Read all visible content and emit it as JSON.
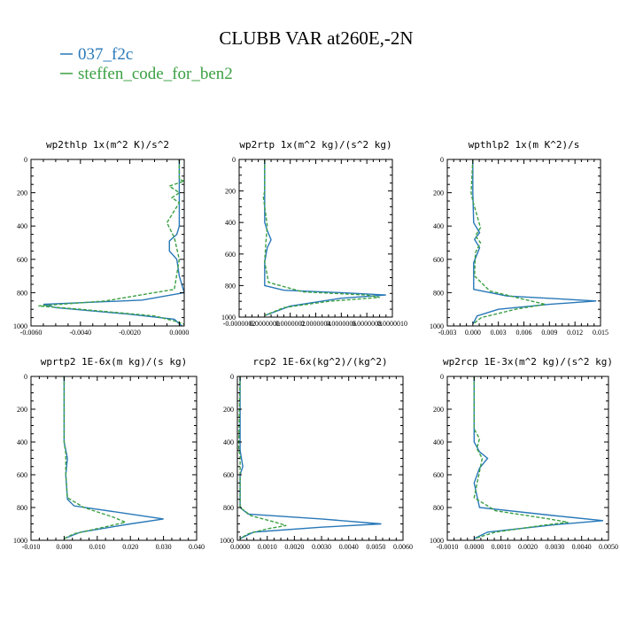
{
  "title": "CLUBB VAR at260E,-2N",
  "colors": {
    "series1": "#2878b8",
    "series2": "#3aa042"
  },
  "legend": [
    {
      "name": "037_f2c",
      "color": "#2878b8",
      "dash": "solid"
    },
    {
      "name": "steffen_code_for_ben2",
      "color": "#3aa042",
      "dash": "dashed"
    }
  ],
  "chart_data": [
    {
      "type": "line",
      "title": "wp2thlp  1x(m^2 K)/s^2",
      "xlim": [
        -0.006,
        0.0002
      ],
      "ylim": [
        1000,
        0
      ],
      "xticks": [
        -0.006,
        -0.004,
        -0.002,
        0.0
      ],
      "xtick_labels": [
        "-0.0060",
        "-0.0040",
        "-0.0020",
        "0.0000"
      ],
      "yticks": [
        0,
        200,
        400,
        600,
        800,
        1000
      ],
      "ytick_labels": [
        "0",
        "200",
        "400",
        "600",
        "800",
        "1000"
      ],
      "series": [
        {
          "name": "037_f2c",
          "x": [
            0,
            0,
            0,
            -0.0001,
            -0.0004,
            -0.0004,
            -0.0001,
            0,
            0.0002,
            -0.0015,
            -0.0055,
            -0.005,
            -0.002,
            -0.0002,
            0.0001
          ],
          "y": [
            0,
            200,
            400,
            450,
            490,
            550,
            600,
            700,
            800,
            845,
            870,
            890,
            930,
            960,
            1000
          ]
        },
        {
          "name": "steffen_code_for_ben2",
          "x": [
            0,
            0,
            0.0002,
            -0.0004,
            0,
            -0.0003,
            0,
            -0.0005,
            -0.0002,
            0,
            -0.0002,
            -0.003,
            -0.0057,
            -0.004,
            -0.001,
            -0.0002,
            0.0002
          ],
          "y": [
            0,
            120,
            130,
            160,
            200,
            230,
            260,
            380,
            470,
            600,
            780,
            850,
            880,
            900,
            940,
            970,
            990
          ]
        }
      ]
    },
    {
      "type": "line",
      "title": "wp2rtp  1x(m^2 kg)/(s^2 kg)",
      "xlim": [
        -2e-07,
        1e-06
      ],
      "ylim": [
        1000,
        0
      ],
      "xticks": [
        -2e-07,
        0.0,
        2e-07,
        4e-07,
        6e-07,
        8e-07,
        1e-06
      ],
      "xtick_labels": [
        "-0.0000002",
        "0.0000000",
        "0.0000002",
        "0.0000004",
        "0.0000006",
        "0.0000008",
        "0.0000010"
      ],
      "yticks": [
        0,
        200,
        400,
        600,
        800,
        1000
      ],
      "ytick_labels": [
        "0",
        "200",
        "400",
        "600",
        "800",
        "1000"
      ],
      "series": [
        {
          "name": "037_f2c",
          "x": [
            0,
            0,
            0,
            2e-08,
            5e-08,
            2e-08,
            0,
            0,
            1.5e-07,
            6e-07,
            9.5e-07,
            6e-07,
            2e-07,
            0
          ],
          "y": [
            0,
            200,
            400,
            450,
            510,
            560,
            650,
            800,
            830,
            845,
            860,
            880,
            930,
            990
          ]
        },
        {
          "name": "steffen_code_for_ben2",
          "x": [
            0,
            0,
            -1e-08,
            0,
            2e-08,
            1e-08,
            0,
            3e-08,
            3e-07,
            8e-07,
            9e-07,
            5e-07,
            1.5e-07,
            0
          ],
          "y": [
            0,
            200,
            240,
            300,
            420,
            520,
            650,
            780,
            840,
            860,
            875,
            900,
            940,
            990
          ]
        }
      ]
    },
    {
      "type": "line",
      "title": "wpthlp2  1x(m K^2)/s",
      "xlim": [
        -0.003,
        0.015
      ],
      "ylim": [
        1000,
        0
      ],
      "xticks": [
        -0.003,
        0.0,
        0.003,
        0.006,
        0.009,
        0.012,
        0.015
      ],
      "xtick_labels": [
        "-0.003",
        "0.000",
        "0.003",
        "0.006",
        "0.009",
        "0.012",
        "0.015"
      ],
      "yticks": [
        0,
        200,
        400,
        600,
        800,
        1000
      ],
      "ytick_labels": [
        "0",
        "200",
        "400",
        "600",
        "800",
        "1000"
      ],
      "series": [
        {
          "name": "037_f2c",
          "x": [
            0,
            0,
            0.0001,
            0.0008,
            0.0002,
            0.0008,
            0.0001,
            0.0001,
            0.004,
            0.0145,
            0.009,
            0.003,
            0.0005,
            0
          ],
          "y": [
            0,
            200,
            380,
            440,
            480,
            530,
            620,
            780,
            820,
            850,
            870,
            900,
            940,
            990
          ]
        },
        {
          "name": "steffen_code_for_ben2",
          "x": [
            0,
            -0.0002,
            0,
            0.0004,
            0.0009,
            0.0003,
            0.0009,
            0.0003,
            0.0002,
            0.002,
            0.006,
            0.0085,
            0.005,
            0.001,
            0
          ],
          "y": [
            0,
            200,
            250,
            320,
            410,
            460,
            500,
            560,
            700,
            790,
            840,
            870,
            900,
            950,
            990
          ]
        }
      ]
    },
    {
      "type": "line",
      "title": "wprtp2  1E-6x(m kg)/(s kg)",
      "xlim": [
        -0.01,
        0.04
      ],
      "ylim": [
        1000,
        0
      ],
      "xticks": [
        -0.01,
        0.0,
        0.01,
        0.02,
        0.03,
        0.04
      ],
      "xtick_labels": [
        "-0.010",
        "0.000",
        "0.010",
        "0.020",
        "0.030",
        "0.040"
      ],
      "yticks": [
        0,
        200,
        400,
        600,
        800,
        1000
      ],
      "ytick_labels": [
        "0",
        "200",
        "400",
        "600",
        "800",
        "1000"
      ],
      "series": [
        {
          "name": "037_f2c",
          "x": [
            0,
            0,
            0.001,
            0.0005,
            0.001,
            0.003,
            0.02,
            0.03,
            0.02,
            0.005,
            0
          ],
          "y": [
            0,
            400,
            500,
            600,
            750,
            790,
            840,
            870,
            900,
            950,
            990
          ]
        },
        {
          "name": "steffen_code_for_ben2",
          "x": [
            0,
            0,
            0.0005,
            0.0005,
            0.001,
            0.006,
            0.015,
            0.0185,
            0.012,
            0.003,
            0
          ],
          "y": [
            0,
            400,
            470,
            600,
            740,
            800,
            860,
            890,
            920,
            960,
            990
          ]
        }
      ]
    },
    {
      "type": "line",
      "title": "rcp2  1E-6x(kg^2)/(kg^2)",
      "xlim": [
        -0.0001,
        0.006
      ],
      "ylim": [
        1000,
        0
      ],
      "xticks": [
        0.0,
        0.001,
        0.002,
        0.003,
        0.004,
        0.005,
        0.006
      ],
      "xtick_labels": [
        "0.0000",
        "0.0010",
        "0.0020",
        "0.0030",
        "0.0040",
        "0.0050",
        "0.0060"
      ],
      "yticks": [
        0,
        200,
        400,
        600,
        800,
        1000
      ],
      "ytick_labels": [
        "0",
        "200",
        "400",
        "600",
        "800",
        "1000"
      ],
      "series": [
        {
          "name": "037_f2c",
          "x": [
            0,
            0,
            0.0001,
            0,
            0,
            0.0003,
            0.003,
            0.0052,
            0.003,
            0.0005,
            0
          ],
          "y": [
            0,
            450,
            550,
            600,
            800,
            840,
            870,
            900,
            920,
            950,
            990
          ]
        },
        {
          "name": "steffen_code_for_ben2",
          "x": [
            0,
            -5e-05,
            0,
            0,
            0.0004,
            0.0013,
            0.0017,
            0.001,
            0.0003,
            0
          ],
          "y": [
            0,
            450,
            480,
            800,
            850,
            890,
            910,
            930,
            960,
            990
          ]
        }
      ]
    },
    {
      "type": "line",
      "title": "wp2rcp  1E-3x(m^2 kg)/(s^2 kg)",
      "xlim": [
        -0.001,
        0.005
      ],
      "ylim": [
        1000,
        0
      ],
      "xticks": [
        -0.001,
        0.0,
        0.001,
        0.002,
        0.003,
        0.004,
        0.005
      ],
      "xtick_labels": [
        "-0.0010",
        "0.0000",
        "0.0010",
        "0.0020",
        "0.0030",
        "0.0040",
        "0.0050"
      ],
      "yticks": [
        0,
        200,
        400,
        600,
        800,
        1000
      ],
      "ytick_labels": [
        "0",
        "200",
        "400",
        "600",
        "800",
        "1000"
      ],
      "series": [
        {
          "name": "037_f2c",
          "x": [
            0,
            0,
            0.0002,
            0.0005,
            0.0002,
            0,
            0.0002,
            0.003,
            0.0048,
            0.003,
            0.0005,
            0
          ],
          "y": [
            0,
            400,
            460,
            500,
            560,
            650,
            800,
            850,
            880,
            905,
            950,
            990
          ]
        },
        {
          "name": "steffen_code_for_ben2",
          "x": [
            0,
            0,
            0.0002,
            0.0001,
            0.0003,
            0,
            0.0008,
            0.0028,
            0.0035,
            0.0025,
            0.0008,
            0
          ],
          "y": [
            0,
            320,
            380,
            440,
            500,
            740,
            820,
            870,
            890,
            910,
            950,
            990
          ]
        }
      ]
    }
  ]
}
